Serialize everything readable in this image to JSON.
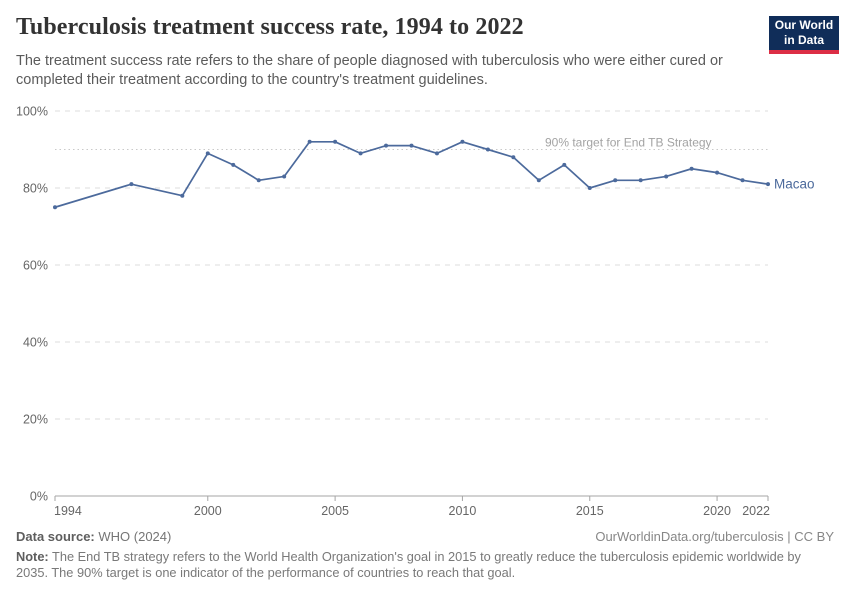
{
  "header": {
    "title": "Tuberculosis treatment success rate, 1994 to 2022",
    "subtitle": "The treatment success rate refers to the share of people diagnosed with tuberculosis who were either cured or completed their treatment according to the country's treatment guidelines.",
    "logo_line1": "Our World",
    "logo_line2": "in Data"
  },
  "chart_data": {
    "type": "line",
    "title": "Tuberculosis treatment success rate, 1994 to 2022",
    "xlabel": "",
    "ylabel": "",
    "xlim": [
      1994,
      2022
    ],
    "ylim": [
      0,
      100
    ],
    "x_ticks": [
      1994,
      2000,
      2005,
      2010,
      2015,
      2020,
      2022
    ],
    "y_ticks": [
      0,
      20,
      40,
      60,
      80,
      100
    ],
    "y_tick_suffix": "%",
    "grid": "horizontal-dashed",
    "legend_position": "end-of-line-label",
    "target_line": {
      "value": 90,
      "label": "90% target for End TB Strategy"
    },
    "series": [
      {
        "name": "Macao",
        "color": "#4c6a9c",
        "points": [
          [
            1994,
            75
          ],
          [
            1997,
            81
          ],
          [
            1999,
            78
          ],
          [
            2000,
            89
          ],
          [
            2001,
            86
          ],
          [
            2002,
            82
          ],
          [
            2003,
            83
          ],
          [
            2004,
            92
          ],
          [
            2005,
            92
          ],
          [
            2006,
            89
          ],
          [
            2007,
            91
          ],
          [
            2008,
            91
          ],
          [
            2009,
            89
          ],
          [
            2010,
            92
          ],
          [
            2011,
            90
          ],
          [
            2012,
            88
          ],
          [
            2013,
            82
          ],
          [
            2014,
            86
          ],
          [
            2015,
            80
          ],
          [
            2016,
            82
          ],
          [
            2017,
            82
          ],
          [
            2018,
            83
          ],
          [
            2019,
            85
          ],
          [
            2020,
            84
          ],
          [
            2021,
            82
          ],
          [
            2022,
            81
          ]
        ]
      }
    ]
  },
  "colors": {
    "line": "#4c6a9c",
    "grid": "#dcdcdc",
    "target": "#c9c9c9",
    "target_label": "#a3a3a3",
    "axis": "#a5a5a5",
    "tick_label": "#666666"
  },
  "footer": {
    "datasource_label": "Data source:",
    "datasource_value": "WHO (2024)",
    "license": "OurWorldinData.org/tuberculosis | CC BY",
    "note_label": "Note:",
    "note_text": "The End TB strategy refers to the World Health Organization's goal in 2015 to greatly reduce the tuberculosis epidemic worldwide by 2035. The 90% target is one indicator of the performance of countries to reach that goal."
  }
}
